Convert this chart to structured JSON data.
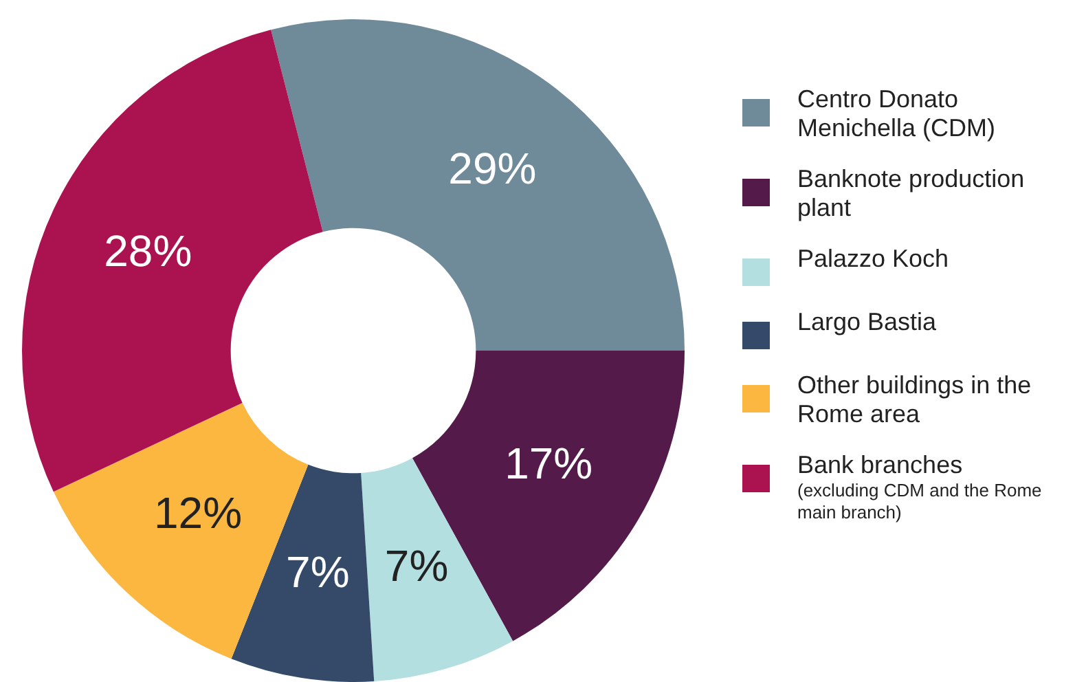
{
  "chart_data": {
    "type": "donut",
    "categories": [
      "Centro Donato Menichella (CDM)",
      "Banknote production plant",
      "Palazzo Koch",
      "Largo Bastia",
      "Other buildings in the Rome area",
      "Bank branches"
    ],
    "values": [
      29,
      17,
      7,
      7,
      12,
      28
    ],
    "value_labels": [
      "29%",
      "17%",
      "7%",
      "7%",
      "12%",
      "28%"
    ],
    "colors": [
      "#6f8a99",
      "#541b4a",
      "#b3dfe0",
      "#344a68",
      "#fbb73f",
      "#ab1350"
    ],
    "legend": "right",
    "annotations": [
      "(excluding CDM and the Rome main branch)"
    ]
  }
}
